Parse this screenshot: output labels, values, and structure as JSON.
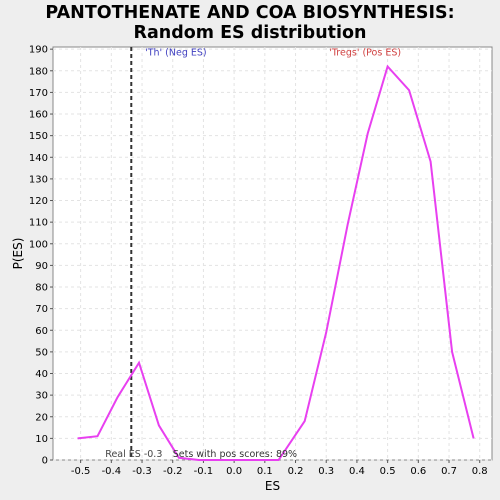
{
  "chart_data": {
    "type": "line",
    "title": "PANTOTHENATE AND COA BIOSYNTHESIS:",
    "subtitle": "Random ES distribution",
    "xlabel": "ES",
    "ylabel": "P(ES)",
    "xlim": [
      -0.59,
      0.84
    ],
    "ylim": [
      0,
      191
    ],
    "x_ticks": [
      -0.5,
      -0.4,
      -0.3,
      -0.2,
      -0.1,
      0.0,
      0.1,
      0.2,
      0.3,
      0.4,
      0.5,
      0.6,
      0.7,
      0.8
    ],
    "x_tick_labels": [
      "-0.5",
      "-0.4",
      "-0.3",
      "-0.2",
      "-0.1",
      "0.0",
      "0.1",
      "0.2",
      "0.3",
      "0.4",
      "0.5",
      "0.6",
      "0.7",
      "0.8"
    ],
    "y_ticks": [
      0,
      10,
      20,
      30,
      40,
      50,
      60,
      70,
      80,
      90,
      100,
      110,
      120,
      130,
      140,
      150,
      160,
      170,
      180,
      190
    ],
    "grid": true,
    "series": [
      {
        "color": "#e840f0",
        "x": [
          -0.51,
          -0.445,
          -0.38,
          -0.31,
          -0.245,
          -0.18,
          -0.115,
          -0.05,
          0.015,
          0.08,
          0.145,
          0.23,
          0.3,
          0.37,
          0.435,
          0.5,
          0.57,
          0.64,
          0.71,
          0.78
        ],
        "y": [
          10,
          11,
          29,
          45,
          16,
          1,
          0,
          0,
          0,
          0,
          0,
          18,
          59,
          109,
          151,
          182,
          171,
          138,
          50,
          10
        ]
      }
    ],
    "real_es": {
      "value": -0.335,
      "label": "Real ES -0.3",
      "color": "#333333"
    },
    "annotations": [
      {
        "text": "'Th' (Neg ES)",
        "x": -0.29,
        "y": 187,
        "color": "#4040c0"
      },
      {
        "text": "'Tregs' (Pos ES)",
        "x": 0.31,
        "y": 187,
        "color": "#d04040"
      },
      {
        "text": "Sets with pos scores: 89%",
        "x": -0.2,
        "y": 1.5,
        "color": "#333333"
      }
    ]
  }
}
